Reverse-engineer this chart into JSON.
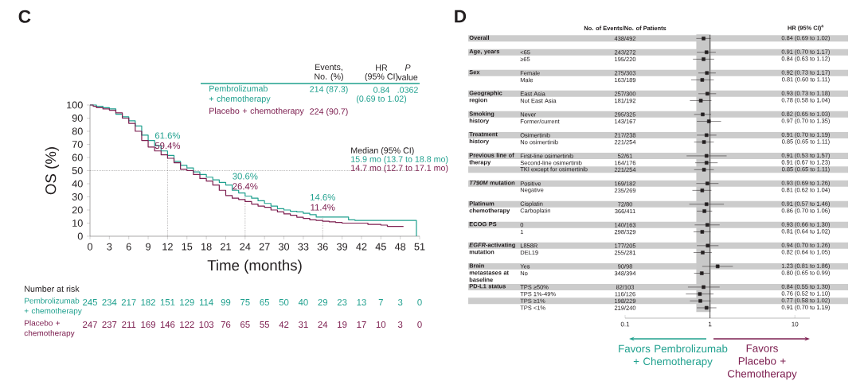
{
  "chart_data": [
    {
      "type": "step",
      "title": "C",
      "xlabel": "Time (months)",
      "ylabel": "OS (%)",
      "xlim": [
        0,
        51
      ],
      "xticks": [
        0,
        3,
        6,
        9,
        12,
        15,
        18,
        21,
        24,
        27,
        30,
        33,
        36,
        39,
        42,
        45,
        48,
        51
      ],
      "ylim": [
        0,
        100
      ],
      "yticks": [
        0,
        10,
        20,
        30,
        40,
        50,
        60,
        70,
        80,
        90,
        100
      ],
      "series": [
        {
          "name": "Pembrolizumab + chemotherapy",
          "color": "#1fa08e",
          "x": [
            0,
            1,
            2,
            3,
            4,
            5,
            6,
            7,
            8,
            9,
            10,
            11,
            12,
            13,
            14,
            15,
            16,
            17,
            18,
            19,
            20,
            21,
            22,
            23,
            24,
            25,
            26,
            27,
            28,
            29,
            30,
            31,
            32,
            33,
            34,
            35,
            40,
            41,
            50.5
          ],
          "values": [
            100,
            99,
            98,
            97,
            93,
            91,
            88,
            84,
            77,
            73,
            69,
            65,
            61.6,
            57,
            54,
            52,
            49,
            47,
            45,
            43,
            41,
            39,
            35,
            33,
            30.6,
            29,
            27,
            25,
            23,
            21,
            20,
            19,
            18.5,
            17.5,
            16.5,
            14.6,
            12.5,
            12,
            0
          ]
        },
        {
          "name": "Placebo + chemotherapy",
          "color": "#7d1f50",
          "x": [
            0,
            0.5,
            1,
            2,
            3,
            4,
            5,
            6,
            7,
            8,
            9,
            10,
            11,
            12,
            13,
            14,
            15,
            16,
            17,
            18,
            19,
            20,
            21,
            22,
            23,
            24,
            25,
            26,
            27,
            28,
            29,
            30,
            31,
            32,
            33,
            34,
            35,
            36,
            37,
            38,
            39,
            43,
            45,
            46,
            48.5
          ],
          "values": [
            100,
            99,
            98,
            97,
            96,
            94,
            90,
            86,
            80,
            73,
            68,
            65,
            62,
            59.4,
            56,
            51,
            50,
            47,
            44,
            42,
            39,
            35,
            31,
            29,
            28,
            26.4,
            24.5,
            23,
            22,
            20,
            18.5,
            17,
            16,
            14.5,
            13.5,
            12.5,
            12,
            11.4,
            11,
            10.5,
            10,
            9,
            8.5,
            7.5,
            7.5
          ]
        }
      ],
      "ref_lines": [
        {
          "axis": "y",
          "value": 50,
          "line_style": "dotted"
        },
        {
          "axis": "x",
          "value": 12,
          "line_style": "dotted"
        },
        {
          "axis": "x",
          "value": 24,
          "line_style": "dotted"
        },
        {
          "axis": "x",
          "value": 36,
          "line_style": "dotted"
        }
      ],
      "annotations": [
        "Events,",
        "No. (%)",
        "HR",
        "(95% CI)",
        "*P*",
        "value",
        "214 (87.3)",
        "0.84",
        "(0.69 to 1.02)",
        ".0362",
        "224 (90.7)",
        "Median (95% CI)",
        "15.9 mo (13.7 to 18.8 mo)",
        "14.7 mo (12.7 to 17.1 mo)",
        "Number at risk",
        "245",
        "234",
        "217",
        "182",
        "151",
        "129",
        "114",
        "99",
        "75",
        "65",
        "50",
        "40",
        "29",
        "23",
        "13",
        "7",
        "3",
        "0",
        "247",
        "237",
        "211",
        "169",
        "146",
        "122",
        "103",
        "76",
        "65",
        "55",
        "42",
        "31",
        "24",
        "19",
        "17",
        "10",
        "3",
        "0",
        {
          "text": "61.6%",
          "x": 12,
          "y": 61.6
        },
        {
          "text": "59.4%",
          "x": 12,
          "y": 59.4
        },
        {
          "text": "30.6%",
          "x": 24,
          "y": 30.6
        },
        {
          "text": "26.4%",
          "x": 24,
          "y": 26.4
        },
        {
          "text": "14.6%",
          "x": 36,
          "y": 14.6
        },
        {
          "text": "11.4%",
          "x": 36,
          "y": 11.4
        }
      ]
    },
    {
      "type": "scatter",
      "title": "D",
      "orientation": "horizontal",
      "log": "x",
      "marker": "square",
      "color": "#231f20",
      "xlim": [
        0.1,
        15
      ],
      "xticks": [
        0.1,
        1,
        10
      ],
      "categories": [
        null,
        null,
        "<65",
        "≥65",
        null,
        "Female",
        "Male",
        null,
        "East Asia",
        "Not East Asia",
        null,
        "Never",
        "Former/current",
        null,
        "Osimertinib",
        "No osimertinib",
        null,
        "First-line osimertinib",
        "Second-line osimertinib",
        "TKI except for osimertinib",
        null,
        "Positive",
        "Negative",
        null,
        "Cisplatin",
        "Carboplatin",
        null,
        "0",
        "1",
        null,
        "L858R",
        "DEL19",
        null,
        "Yes",
        "No",
        null,
        "TPS ≥50%",
        "TPS 1%-49%",
        "TPS ≥1%",
        "TPS <1%",
        null
      ],
      "values": [
        0.84,
        null,
        0.91,
        0.84,
        null,
        0.92,
        0.81,
        null,
        0.93,
        0.78,
        null,
        0.82,
        0.97,
        null,
        0.91,
        0.85,
        null,
        0.91,
        0.91,
        0.85,
        null,
        0.93,
        0.81,
        null,
        0.91,
        0.86,
        null,
        0.93,
        0.81,
        null,
        0.94,
        0.82,
        null,
        1.23,
        0.8,
        null,
        0.84,
        0.76,
        0.77,
        0.91,
        null
      ],
      "errors": [
        [
          0.69,
          1.02
        ],
        null,
        [
          0.7,
          1.17
        ],
        [
          0.63,
          1.12
        ],
        null,
        [
          0.73,
          1.17
        ],
        [
          0.6,
          1.11
        ],
        null,
        [
          0.73,
          1.18
        ],
        [
          0.58,
          1.04
        ],
        null,
        [
          0.65,
          1.03
        ],
        [
          0.7,
          1.35
        ],
        null,
        [
          0.7,
          1.19
        ],
        [
          0.65,
          1.11
        ],
        null,
        [
          0.53,
          1.57
        ],
        [
          0.67,
          1.23
        ],
        [
          0.65,
          1.11
        ],
        null,
        [
          0.69,
          1.26
        ],
        [
          0.62,
          1.04
        ],
        null,
        [
          0.57,
          1.46
        ],
        [
          0.7,
          1.06
        ],
        null,
        [
          0.66,
          1.3
        ],
        [
          0.64,
          1.02
        ],
        null,
        [
          0.7,
          1.26
        ],
        [
          0.64,
          1.05
        ],
        null,
        [
          0.81,
          1.86
        ],
        [
          0.65,
          0.99
        ],
        null,
        [
          0.55,
          1.3
        ],
        [
          0.52,
          1.1
        ],
        [
          0.58,
          1.02
        ],
        [
          0.7,
          1.19
        ],
        null
      ],
      "ref_lines": [
        {
          "axis": "x",
          "value": 1,
          "color": "#231f20",
          "line_style": "solid"
        }
      ],
      "bands": [
        {
          "axis": "x",
          "from": 0.69,
          "to": 1.02,
          "color": "#c8c8c8"
        }
      ],
      "annotations": [
        "No. of Events/No. of Patients",
        "HR (95% CI)$^{a}$",
        "Favors Pembrolizumab + Chemotherapy",
        "Favors Placebo + Chemotherapy",
        "Overall",
        "Age, years",
        "Sex",
        "Geographic region",
        "Smoking history",
        "Treatment history",
        "Previous line of therapy",
        "*T790M* mutation",
        "Platinum chemotherapy",
        "ECOG PS",
        "*EGFR*-activating mutation",
        "Brain metastases at baseline",
        "PD-L1 status",
        "438/492",
        "243/272",
        "195/220",
        "275/303",
        "163/189",
        "257/300",
        "181/192",
        "295/325",
        "143/167",
        "217/238",
        "221/254",
        "52/61",
        "164/176",
        "221/254",
        "169/182",
        "235/269",
        "72/80",
        "366/411",
        "140/163",
        "298/329",
        "177/205",
        "255/281",
        "90/98",
        "348/394",
        "82/103",
        "116/126",
        "198/229",
        "219/240",
        "0.84 (0.69 to 1.02)",
        "0.91 (0.70 to 1.17)",
        "0.84 (0.63 to 1.12)",
        "0.92 (0.73 to 1.17)",
        "0.81 (0.60 to 1.11)",
        "0.93 (0.73 to 1.18)",
        "0.78 (0.58 to 1.04)",
        "0.82 (0.65 to 1.03)",
        "0.97 (0.70 to 1.35)",
        "0.91 (0.70 to 1.19)",
        "0.85 (0.65 to 1.11)",
        "0.91 (0.53 to 1.57)",
        "0.91 (0.67 to 1.23)",
        "0.85 (0.65 to 1.11)",
        "0.93 (0.69 to 1.26)",
        "0.81 (0.62 to 1.04)",
        "0.91 (0.57 to 1.46)",
        "0.86 (0.70 to 1.06)",
        "0.93 (0.66 to 1.30)",
        "0.81 (0.64 to 1.02)",
        "0.94 (0.70 to 1.26)",
        "0.82 (0.64 to 1.05)",
        "1.23 (0.81 to 1.86)",
        "0.80 (0.65 to 0.99)",
        "0.84 (0.55 to 1.30)",
        "0.76 (0.52 to 1.10)",
        "0.77 (0.58 to 1.02)",
        "0.91 (0.70 to 1.19)"
      ]
    }
  ]
}
